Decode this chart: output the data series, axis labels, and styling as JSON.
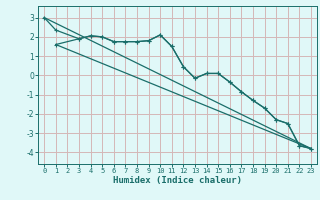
{
  "xlabel": "Humidex (Indice chaleur)",
  "bg_color": "#e0f8f8",
  "grid_color": "#d4b8b8",
  "line_color": "#1a6e6a",
  "xlim": [
    -0.5,
    23.5
  ],
  "ylim": [
    -4.6,
    3.6
  ],
  "yticks": [
    -4,
    -3,
    -2,
    -1,
    0,
    1,
    2,
    3
  ],
  "xticks": [
    0,
    1,
    2,
    3,
    4,
    5,
    6,
    7,
    8,
    9,
    10,
    11,
    12,
    13,
    14,
    15,
    16,
    17,
    18,
    19,
    20,
    21,
    22,
    23
  ],
  "line1_x": [
    0,
    1,
    3,
    4,
    5,
    6,
    7,
    8,
    9,
    10,
    11,
    12,
    13,
    14,
    15,
    16,
    17,
    18,
    19,
    20,
    21,
    22,
    23
  ],
  "line1_y": [
    3.0,
    2.35,
    1.9,
    2.05,
    2.0,
    1.75,
    1.75,
    1.75,
    1.8,
    2.1,
    1.5,
    0.45,
    -0.15,
    0.1,
    0.1,
    -0.35,
    -0.85,
    -1.3,
    -1.7,
    -2.3,
    -2.5,
    -3.65,
    -3.8
  ],
  "line2_x": [
    1,
    3,
    4,
    5,
    6,
    7,
    8,
    9,
    10,
    11,
    12,
    13,
    14,
    15,
    16,
    17,
    18,
    19,
    20,
    21,
    22,
    23
  ],
  "line2_y": [
    1.6,
    1.9,
    2.05,
    2.0,
    1.75,
    1.75,
    1.75,
    1.8,
    2.1,
    1.5,
    0.45,
    -0.15,
    0.1,
    0.1,
    -0.35,
    -0.85,
    -1.3,
    -1.7,
    -2.3,
    -2.5,
    -3.65,
    -3.8
  ],
  "line3_x": [
    0,
    23
  ],
  "line3_y": [
    3.0,
    -3.8
  ],
  "line4_x": [
    1,
    23
  ],
  "line4_y": [
    1.6,
    -3.8
  ]
}
